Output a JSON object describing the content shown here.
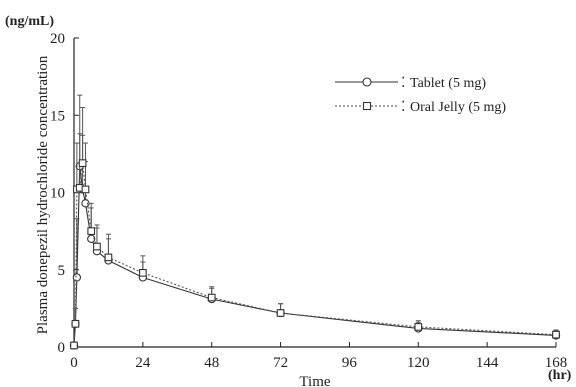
{
  "chart_data": {
    "type": "line",
    "xlabel": "Time",
    "ylabel": "Plasma donepezil hydrochloride concentration",
    "x_unit": "(hr)",
    "y_unit": "(ng/mL)",
    "xlim": [
      0,
      168
    ],
    "ylim": [
      0,
      20
    ],
    "x_ticks": [
      0,
      24,
      48,
      72,
      96,
      120,
      144,
      168
    ],
    "y_ticks": [
      0,
      5,
      10,
      15,
      20
    ],
    "grid": false,
    "legend_position": "top-right",
    "series": [
      {
        "name": "Tablet (5 mg)",
        "marker": "circle",
        "line_style": "solid",
        "x": [
          0,
          0.5,
          1,
          2,
          3,
          4,
          6,
          8,
          12,
          24,
          48,
          72,
          120,
          168
        ],
        "y": [
          0.1,
          1.5,
          4.5,
          11.7,
          10.2,
          9.3,
          7.0,
          6.2,
          5.6,
          4.5,
          3.1,
          2.2,
          1.2,
          0.75
        ],
        "error": [
          0.1,
          1.0,
          3.8,
          4.6,
          3.5,
          2.7,
          2.0,
          1.5,
          1.4,
          1.0,
          0.7,
          0.6,
          0.4,
          0.3
        ]
      },
      {
        "name": "Oral Jelly (5 mg)",
        "marker": "square",
        "line_style": "dotted",
        "x": [
          0,
          0.5,
          1,
          2,
          3,
          4,
          6,
          8,
          12,
          24,
          48,
          72,
          120,
          168
        ],
        "y": [
          0.1,
          1.5,
          10.2,
          10.3,
          11.9,
          10.2,
          7.5,
          6.5,
          5.8,
          4.8,
          3.2,
          2.2,
          1.3,
          0.8
        ],
        "error": [
          0.1,
          1.0,
          3.0,
          3.5,
          3.6,
          3.0,
          1.8,
          1.4,
          1.5,
          1.1,
          0.7,
          0.6,
          0.4,
          0.3
        ]
      }
    ]
  }
}
